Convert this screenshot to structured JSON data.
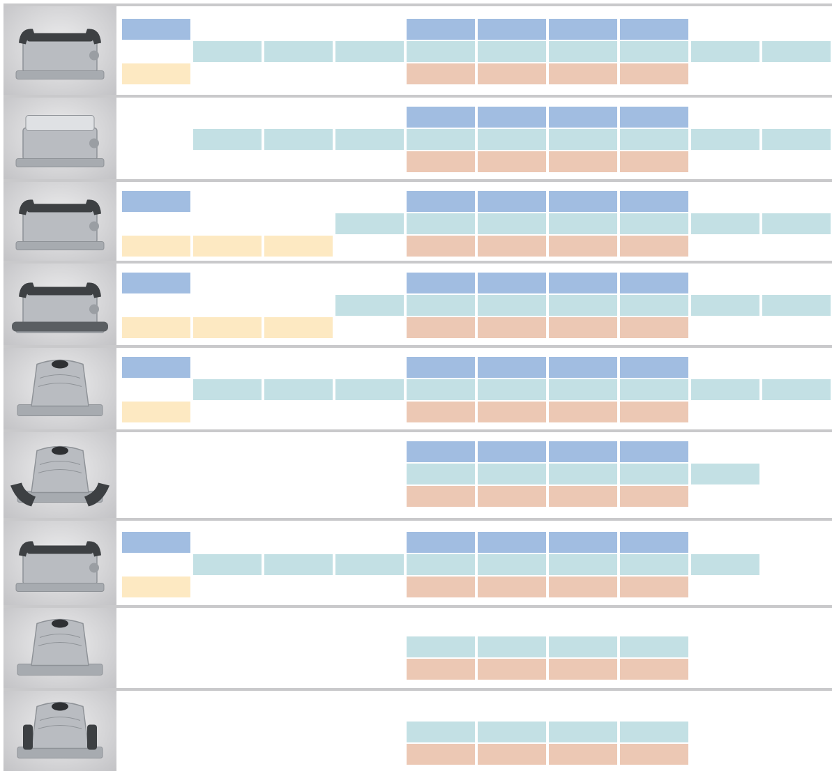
{
  "palette": {
    "blue": "#a1bde1",
    "cyan": "#c3e0e4",
    "pink": "#ecc8b4",
    "yellow": "#fde9c2",
    "separator": "#c9c9cb"
  },
  "rows": [
    {
      "image": "connector-housing-double-lever-icon",
      "cells": {
        "blue": [
          0,
          4,
          5,
          6,
          7
        ],
        "cyan": [
          1,
          2,
          3,
          4,
          5,
          6,
          7,
          8,
          9
        ],
        "pink": [
          4,
          5,
          6,
          7
        ],
        "yellow": [
          0
        ]
      }
    },
    {
      "image": "connector-housing-cover-icon",
      "cells": {
        "blue": [
          4,
          5,
          6,
          7
        ],
        "cyan": [
          1,
          2,
          3,
          4,
          5,
          6,
          7,
          8,
          9
        ],
        "pink": [
          4,
          5,
          6,
          7
        ],
        "yellow": []
      }
    },
    {
      "image": "connector-housing-open-levers-icon",
      "cells": {
        "blue": [
          0,
          4,
          5,
          6,
          7
        ],
        "cyan": [
          3,
          4,
          5,
          6,
          7,
          8,
          9
        ],
        "pink": [
          4,
          5,
          6,
          7
        ],
        "yellow": [
          0,
          1,
          2
        ]
      }
    },
    {
      "image": "connector-housing-long-base-icon",
      "cells": {
        "blue": [
          0,
          4,
          5,
          6,
          7
        ],
        "cyan": [
          3,
          4,
          5,
          6,
          7,
          8,
          9
        ],
        "pink": [
          4,
          5,
          6,
          7
        ],
        "yellow": [
          0,
          1,
          2
        ]
      }
    },
    {
      "image": "hood-top-entry-icon",
      "cells": {
        "blue": [
          0,
          4,
          5,
          6,
          7
        ],
        "cyan": [
          1,
          2,
          3,
          4,
          5,
          6,
          7,
          8,
          9
        ],
        "pink": [
          4,
          5,
          6,
          7
        ],
        "yellow": [
          0
        ]
      }
    },
    {
      "image": "hood-with-levers-icon",
      "cells": {
        "blue": [
          4,
          5,
          6,
          7
        ],
        "cyan": [
          4,
          5,
          6,
          7,
          8
        ],
        "pink": [
          4,
          5,
          6,
          7
        ],
        "yellow": []
      }
    },
    {
      "image": "connector-housing-lever-frame-icon",
      "cells": {
        "blue": [
          0,
          4,
          5,
          6,
          7
        ],
        "cyan": [
          1,
          2,
          3,
          4,
          5,
          6,
          7,
          8
        ],
        "pink": [
          4,
          5,
          6,
          7
        ],
        "yellow": [
          0
        ]
      }
    },
    {
      "image": "hood-flange-icon",
      "cells": {
        "blue": [],
        "cyan": [
          4,
          5,
          6,
          7
        ],
        "pink": [
          4,
          5,
          6,
          7
        ],
        "yellow": []
      }
    },
    {
      "image": "hood-with-latches-icon",
      "cells": {
        "blue": [],
        "cyan": [
          4,
          5,
          6,
          7
        ],
        "pink": [
          4,
          5,
          6,
          7
        ],
        "yellow": []
      }
    }
  ]
}
